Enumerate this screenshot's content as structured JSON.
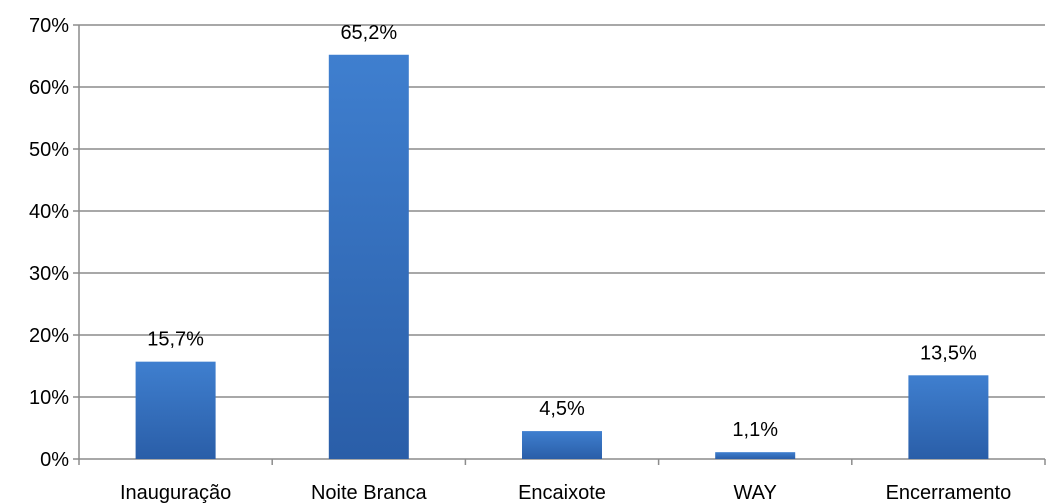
{
  "chart_data": {
    "type": "bar",
    "title": "",
    "xlabel": "",
    "ylabel": "",
    "categories": [
      "Inauguração",
      "Noite Branca",
      "Encaixote",
      "WAY",
      "Encerramento"
    ],
    "values": [
      15.7,
      65.2,
      4.5,
      1.1,
      13.5
    ],
    "data_labels": [
      "15,7%",
      "65,2%",
      "4,5%",
      "1,1%",
      "13,5%"
    ],
    "ylim": [
      0,
      70
    ],
    "yticks": [
      0,
      10,
      20,
      30,
      40,
      50,
      60,
      70
    ],
    "ytick_labels": [
      "0%",
      "10%",
      "20%",
      "30%",
      "40%",
      "50%",
      "60%",
      "70%"
    ],
    "grid": true,
    "legend": "none",
    "colors": {
      "bar_top": "#3f7fcf",
      "bar_bottom": "#2a5ea8",
      "grid": "#8c8c8c",
      "axis": "#8c8c8c"
    }
  }
}
